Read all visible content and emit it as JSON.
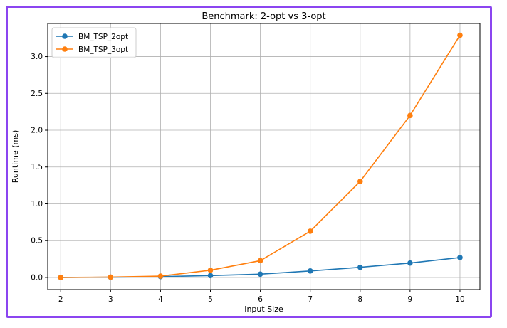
{
  "chart_data": {
    "type": "line",
    "title": "Benchmark: 2-opt vs 3-opt",
    "xlabel": "Input Size",
    "ylabel": "Runtime (ms)",
    "x": [
      2,
      3,
      4,
      5,
      6,
      7,
      8,
      9,
      10
    ],
    "xlim": [
      1.74,
      10.4
    ],
    "ylim": [
      -0.165,
      3.45
    ],
    "xticks": [
      "2",
      "3",
      "4",
      "5",
      "6",
      "7",
      "8",
      "9",
      "10"
    ],
    "yticks": [
      "0.0",
      "0.5",
      "1.0",
      "1.5",
      "2.0",
      "2.5",
      "3.0"
    ],
    "grid": true,
    "legend_position": "top-left",
    "series": [
      {
        "name": "BM_TSP_2opt",
        "color": "#1f77b4",
        "values": [
          0.0,
          0.003,
          0.012,
          0.025,
          0.045,
          0.088,
          0.138,
          0.196,
          0.27
        ]
      },
      {
        "name": "BM_TSP_3opt",
        "color": "#ff7f0e",
        "values": [
          0.0,
          0.005,
          0.018,
          0.098,
          0.228,
          0.628,
          1.305,
          2.2,
          3.29
        ]
      }
    ]
  },
  "frame_color": "#8b45f0"
}
